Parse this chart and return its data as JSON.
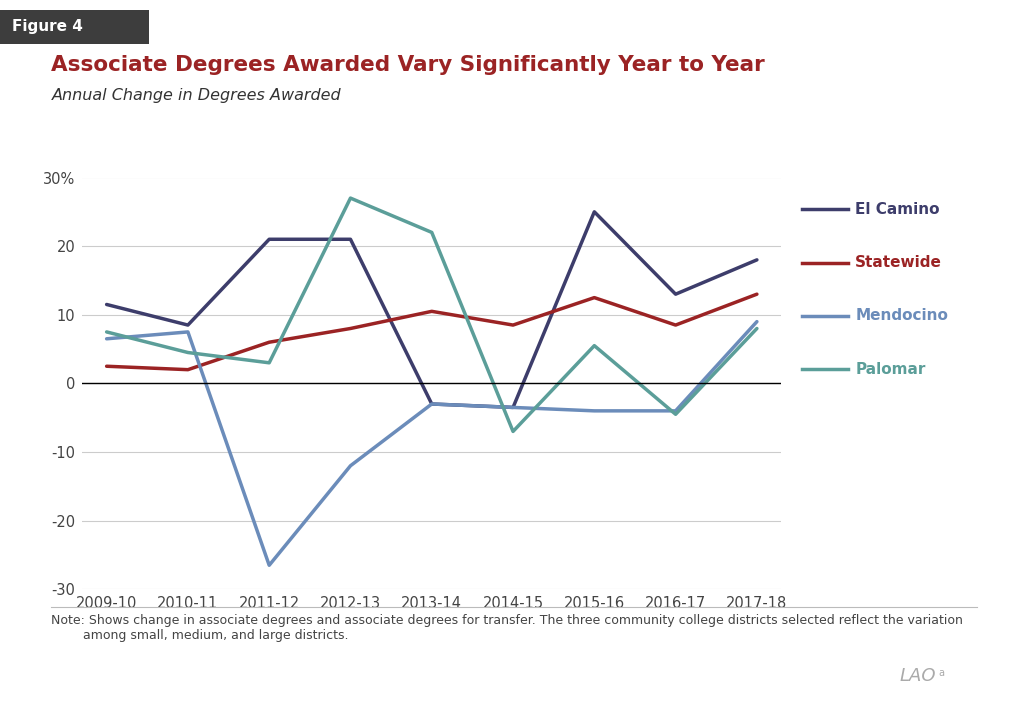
{
  "title": "Associate Degrees Awarded Vary Significantly Year to Year",
  "subtitle": "Annual Change in Degrees Awarded",
  "figure_label": "Figure 4",
  "x_labels": [
    "2009-10",
    "2010-11",
    "2011-12",
    "2012-13",
    "2013-14",
    "2014-15",
    "2015-16",
    "2016-17",
    "2017-18"
  ],
  "series_order": [
    "El Camino",
    "Statewide",
    "Mendocino",
    "Palomar"
  ],
  "series": {
    "El Camino": {
      "values": [
        11.5,
        8.5,
        21.0,
        21.0,
        -3.0,
        -3.5,
        25.0,
        13.0,
        18.0
      ],
      "color": "#3d3d6b",
      "linewidth": 2.5
    },
    "Statewide": {
      "values": [
        2.5,
        2.0,
        6.0,
        8.0,
        10.5,
        8.5,
        12.5,
        8.5,
        13.0
      ],
      "color": "#9b2324",
      "linewidth": 2.5
    },
    "Mendocino": {
      "values": [
        6.5,
        7.5,
        -26.5,
        -12.0,
        -3.0,
        -3.5,
        -4.0,
        -4.0,
        9.0
      ],
      "color": "#6b8cba",
      "linewidth": 2.5
    },
    "Palomar": {
      "values": [
        7.5,
        4.5,
        3.0,
        27.0,
        22.0,
        -7.0,
        5.5,
        -4.5,
        8.0
      ],
      "color": "#5b9e99",
      "linewidth": 2.5
    }
  },
  "ylim": [
    -30,
    30
  ],
  "yticks": [
    -30,
    -20,
    -10,
    0,
    10,
    20,
    30
  ],
  "background_color": "#ffffff",
  "grid_color": "#cccccc",
  "note_text": "Note: Shows change in associate degrees and associate degrees for transfer. The three community college districts selected reflect the variation\n        among small, medium, and large districts.",
  "title_color": "#9b2324",
  "figure_label_bg": "#333333",
  "figure_label_color": "#ffffff",
  "legend_items": [
    {
      "label": "El Camino",
      "color": "#3d3d6b"
    },
    {
      "label": "Statewide",
      "color": "#9b2324"
    },
    {
      "label": "Mendocino",
      "color": "#6b8cba"
    },
    {
      "label": "Palomar",
      "color": "#5b9e99"
    }
  ]
}
